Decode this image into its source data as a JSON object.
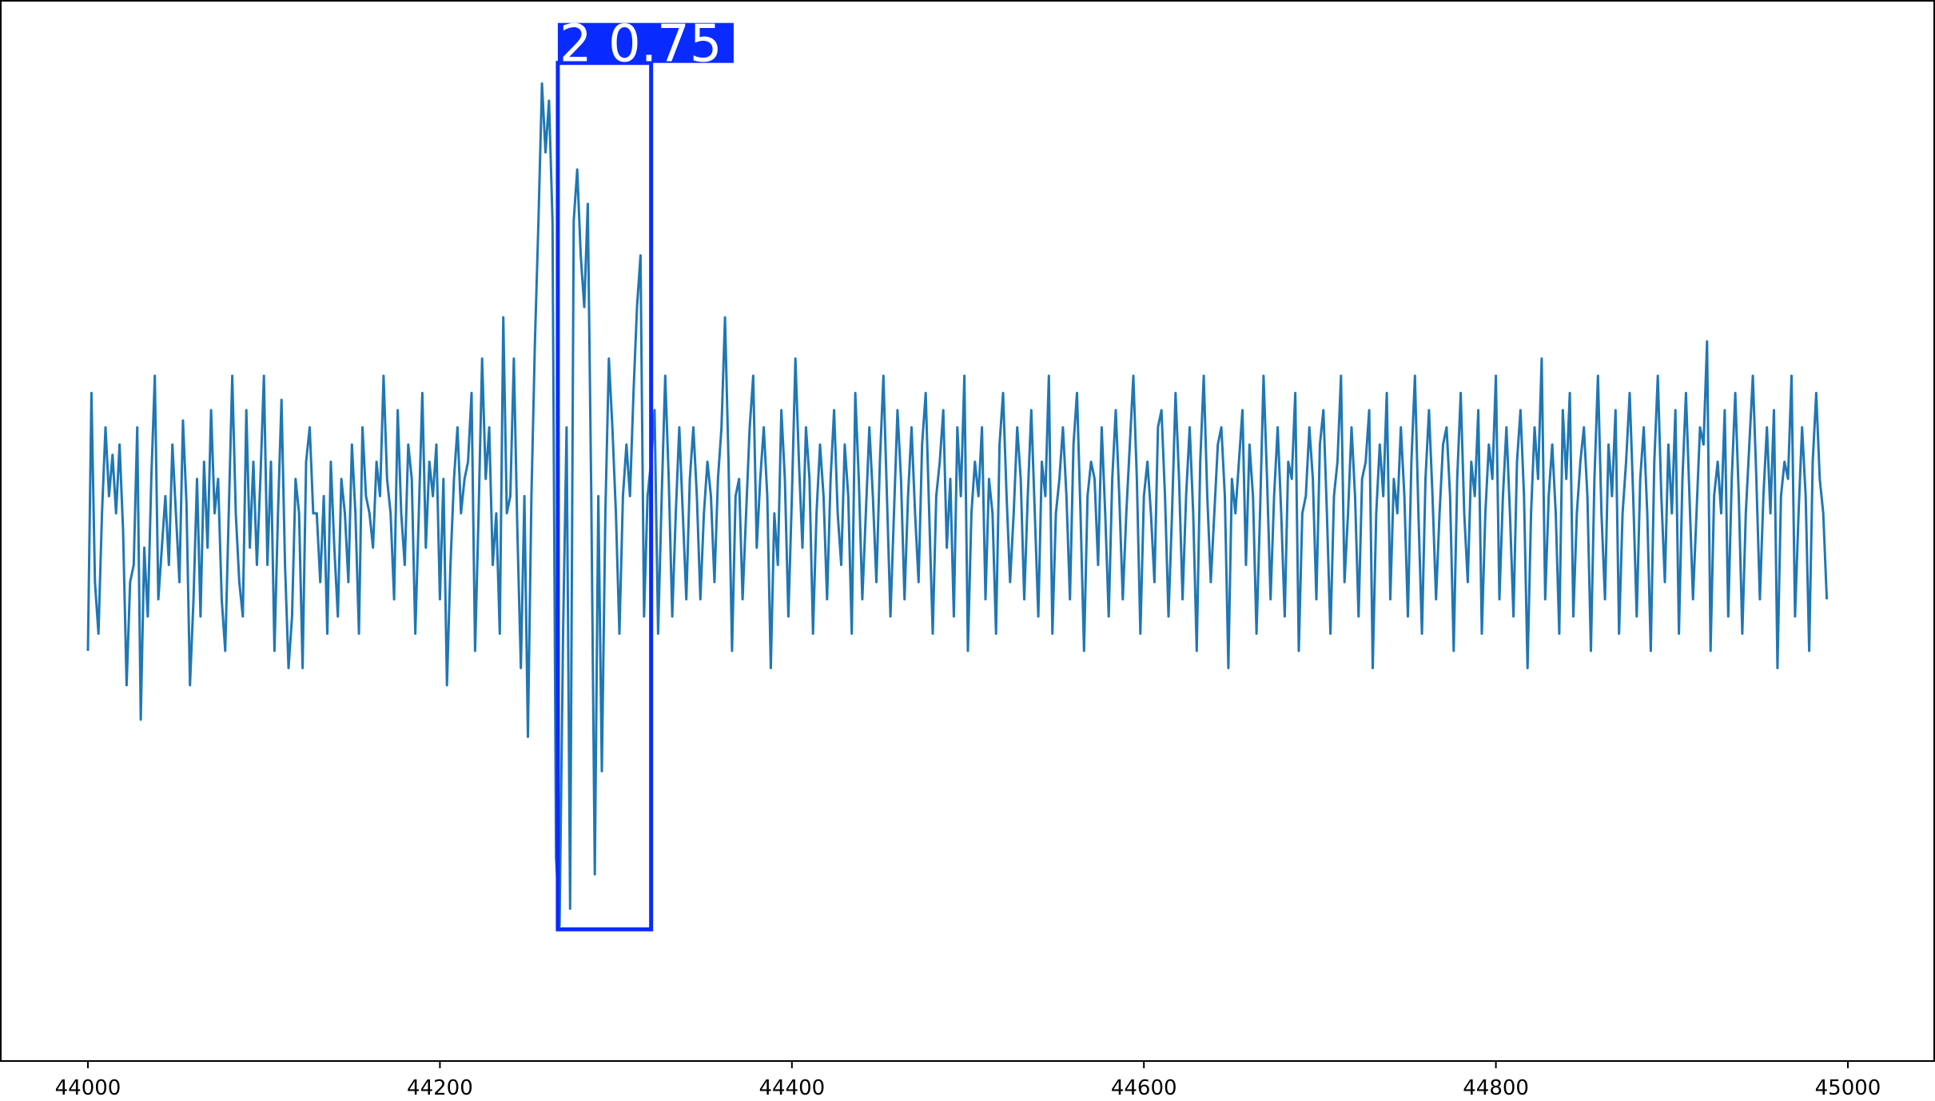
{
  "chart_data": {
    "type": "line",
    "title": "",
    "xlabel": "",
    "ylabel": "",
    "xlim": [
      44000,
      45000
    ],
    "ylim": [
      -1.45,
      1.45
    ],
    "x_ticks": [
      44000,
      44200,
      44400,
      44600,
      44800,
      45000
    ],
    "x_tick_labels": [
      "44000",
      "44200",
      "44400",
      "44600",
      "44800",
      "45000"
    ],
    "grid": false,
    "legend": "none",
    "y_axis_visible": false,
    "colors": {
      "series": "#1f77b4",
      "detection": "#0a2bff",
      "detection_text": "#ffffff",
      "axes": "#000000"
    },
    "series": [
      {
        "sample_start": 44000,
        "sample_step": 2,
        "values": [
          -0.35,
          0.4,
          -0.15,
          -0.3,
          0.05,
          0.3,
          0.1,
          0.22,
          0.05,
          0.25,
          0.0,
          -0.45,
          -0.15,
          -0.1,
          0.3,
          -0.55,
          -0.05,
          -0.25,
          0.15,
          0.45,
          -0.2,
          -0.05,
          0.1,
          -0.1,
          0.25,
          0.05,
          -0.15,
          0.32,
          0.08,
          -0.45,
          -0.2,
          0.15,
          -0.25,
          0.2,
          -0.05,
          0.35,
          0.05,
          0.15,
          -0.2,
          -0.35,
          0.05,
          0.45,
          0.05,
          -0.15,
          -0.25,
          0.35,
          -0.05,
          0.2,
          -0.1,
          0.15,
          0.45,
          -0.1,
          0.2,
          -0.35,
          0.05,
          0.38,
          -0.1,
          -0.4,
          -0.25,
          0.15,
          0.05,
          -0.4,
          0.2,
          0.3,
          0.05,
          0.05,
          -0.15,
          0.1,
          -0.3,
          0.2,
          -0.05,
          -0.25,
          0.15,
          0.05,
          -0.15,
          0.25,
          0.05,
          -0.3,
          0.3,
          0.1,
          0.05,
          -0.05,
          0.2,
          0.1,
          0.45,
          0.15,
          0.05,
          -0.2,
          0.35,
          0.05,
          -0.1,
          0.25,
          0.15,
          -0.3,
          0.05,
          0.4,
          -0.05,
          0.2,
          0.1,
          0.25,
          -0.2,
          0.15,
          -0.45,
          -0.1,
          0.15,
          0.3,
          0.05,
          0.15,
          0.2,
          0.4,
          -0.35,
          0.05,
          0.5,
          0.15,
          0.3,
          -0.1,
          0.05,
          -0.3,
          0.62,
          0.05,
          0.1,
          0.5,
          0.0,
          -0.4,
          0.1,
          -0.6,
          0.1,
          0.55,
          0.9,
          1.3,
          1.1,
          1.25,
          0.9,
          -0.95,
          -1.15,
          -0.3,
          0.3,
          -1.1,
          0.9,
          1.05,
          0.8,
          0.65,
          0.95,
          0.1,
          -1.0,
          0.1,
          -0.7,
          0.05,
          0.5,
          0.3,
          0.05,
          -0.3,
          0.1,
          0.25,
          0.1,
          0.4,
          0.65,
          0.8,
          -0.25,
          0.1,
          0.2,
          0.35,
          -0.3,
          0.1,
          0.45,
          0.15,
          -0.25,
          0.05,
          0.3,
          0.05,
          -0.2,
          0.15,
          0.3,
          0.1,
          -0.2,
          0.05,
          0.2,
          0.1,
          -0.15,
          0.15,
          0.3,
          0.62,
          0.2,
          -0.35,
          0.1,
          0.15,
          -0.2,
          0.05,
          0.3,
          0.45,
          -0.05,
          0.15,
          0.3,
          0.1,
          -0.4,
          0.05,
          -0.1,
          0.35,
          0.15,
          -0.25,
          0.1,
          0.5,
          0.2,
          -0.05,
          0.3,
          0.15,
          -0.3,
          0.05,
          0.25,
          0.1,
          -0.2,
          0.15,
          0.35,
          0.05,
          -0.1,
          0.25,
          0.1,
          -0.3,
          0.4,
          0.15,
          -0.2,
          0.05,
          0.3,
          0.1,
          -0.15,
          0.2,
          0.45,
          0.1,
          -0.25,
          0.05,
          0.35,
          0.15,
          -0.2,
          0.1,
          0.3,
          0.05,
          -0.15,
          0.25,
          0.4,
          0.05,
          -0.3,
          0.1,
          0.2,
          0.35,
          -0.05,
          0.15,
          -0.25,
          0.3,
          0.1,
          0.45,
          -0.35,
          0.05,
          0.2,
          0.1,
          0.3,
          -0.2,
          0.15,
          0.05,
          -0.3,
          0.25,
          0.4,
          0.1,
          -0.15,
          0.05,
          0.3,
          0.15,
          -0.2,
          0.1,
          0.35,
          0.05,
          -0.25,
          0.2,
          0.1,
          0.45,
          -0.3,
          0.05,
          0.15,
          0.3,
          0.1,
          -0.2,
          0.25,
          0.4,
          0.05,
          -0.35,
          0.1,
          0.2,
          0.15,
          -0.1,
          0.3,
          0.05,
          -0.25,
          0.15,
          0.35,
          0.1,
          -0.2,
          0.05,
          0.25,
          0.45,
          0.15,
          -0.3,
          0.1,
          0.2,
          0.05,
          -0.15,
          0.3,
          0.35,
          0.1,
          -0.25,
          0.05,
          0.4,
          0.15,
          -0.2,
          0.1,
          0.3,
          0.05,
          -0.35,
          0.2,
          0.45,
          0.1,
          -0.15,
          0.05,
          0.25,
          0.3,
          0.1,
          -0.4,
          0.15,
          0.05,
          0.2,
          0.35,
          -0.1,
          0.25,
          0.1,
          -0.3,
          0.05,
          0.45,
          0.15,
          -0.2,
          0.1,
          0.3,
          0.05,
          -0.25,
          0.2,
          0.15,
          0.4,
          -0.35,
          0.05,
          0.1,
          0.3,
          0.15,
          -0.2,
          0.25,
          0.35,
          0.05,
          -0.3,
          0.1,
          0.2,
          0.45,
          -0.15,
          0.05,
          0.3,
          0.1,
          -0.25,
          0.15,
          0.2,
          0.35,
          -0.4,
          0.05,
          0.25,
          0.1,
          0.4,
          -0.2,
          0.15,
          0.05,
          0.3,
          0.1,
          -0.25,
          0.2,
          0.45,
          0.05,
          -0.3,
          0.15,
          0.35,
          0.1,
          -0.2,
          0.05,
          0.25,
          0.3,
          0.1,
          -0.35,
          0.15,
          0.4,
          0.05,
          -0.15,
          0.2,
          0.1,
          0.35,
          -0.3,
          0.05,
          0.25,
          0.15,
          0.45,
          -0.2,
          0.1,
          0.3,
          0.05,
          -0.25,
          0.2,
          0.35,
          0.1,
          -0.4,
          0.05,
          0.3,
          0.15,
          0.5,
          -0.2,
          0.1,
          0.25,
          0.05,
          -0.3,
          0.35,
          0.15,
          0.4,
          -0.25,
          0.05,
          0.2,
          0.3,
          0.1,
          -0.35,
          0.15,
          0.45,
          0.05,
          -0.2,
          0.25,
          0.1,
          0.35,
          -0.3,
          0.05,
          0.2,
          0.4,
          0.1,
          -0.25,
          0.15,
          0.3,
          0.05,
          -0.35,
          0.2,
          0.45,
          0.1,
          -0.15,
          0.25,
          0.05,
          0.35,
          -0.3,
          0.15,
          0.4,
          0.1,
          -0.2,
          0.05,
          0.3,
          0.25,
          0.55,
          -0.35,
          0.1,
          0.2,
          0.05,
          0.35,
          -0.25,
          0.15,
          0.4,
          0.1,
          -0.3,
          0.05,
          0.25,
          0.45,
          0.15,
          -0.2,
          0.1,
          0.3,
          0.05,
          0.35,
          -0.4,
          0.1,
          0.2,
          0.15,
          0.45,
          -0.25,
          0.05,
          0.3,
          0.1,
          -0.35,
          0.2,
          0.4,
          0.15,
          0.05,
          -0.2
        ]
      }
    ],
    "detection": {
      "label": "2 0.75",
      "x_range": [
        44267,
        44320
      ],
      "y_range": [
        -1.16,
        1.36
      ]
    }
  }
}
